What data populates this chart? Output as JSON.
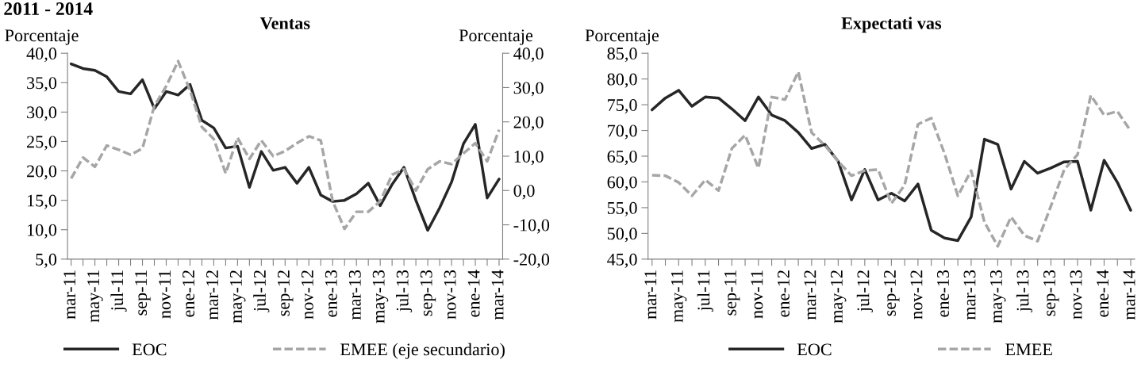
{
  "chart_data": [
    {
      "type": "line",
      "title": "Ventas",
      "ylabel": "Porcentaje",
      "y2label": "Porcentaje",
      "annotations": [
        "2011 - 2014"
      ],
      "categories": [
        "mar-11",
        null,
        "may-11",
        null,
        "jul-11",
        null,
        "sep-11",
        null,
        "nov-11",
        null,
        "ene-12",
        null,
        "mar-12",
        null,
        "may-12",
        null,
        "jul-12",
        null,
        "sep-12",
        null,
        "nov-12",
        null,
        "ene-13",
        null,
        "mar-13",
        null,
        "may-13",
        null,
        "jul-13",
        null,
        "sep-13",
        null,
        "nov-13",
        null,
        "ene-14",
        null,
        "mar-14"
      ],
      "series": [
        {
          "name": "EOC",
          "color": "#262626",
          "line_style": "solid",
          "values": [
            38.2,
            37.4,
            37.1,
            36.0,
            33.5,
            33.1,
            35.5,
            30.6,
            33.5,
            32.9,
            34.7,
            28.6,
            27.3,
            23.9,
            24.2,
            17.2,
            23.3,
            20.1,
            20.6,
            17.9,
            20.6,
            15.9,
            14.8,
            15.0,
            16.1,
            17.9,
            14.1,
            17.7,
            20.6,
            15.0,
            9.9,
            13.7,
            18.1,
            24.6,
            27.9,
            15.4,
            18.6
          ]
        },
        {
          "name": "EMEE (eje secundario)",
          "color": "#a6a6a6",
          "line_style": "dashed",
          "axis": "y2",
          "values": [
            3.5,
            9.6,
            6.9,
            13.1,
            11.9,
            10.4,
            12.3,
            24.6,
            30.4,
            37.7,
            29.2,
            18.5,
            15.0,
            5.0,
            15.4,
            9.2,
            14.6,
            10.0,
            11.5,
            13.8,
            15.8,
            14.6,
            -3.1,
            -11.2,
            -6.2,
            -6.2,
            -3.1,
            4.6,
            6.2,
            0.0,
            6.2,
            8.5,
            7.7,
            10.8,
            13.8,
            8.5,
            17.7
          ]
        }
      ],
      "ylim": [
        5,
        40
      ],
      "yticks": [
        {
          "value": 5,
          "label": "5,0"
        },
        {
          "value": 10,
          "label": "10,0"
        },
        {
          "value": 15,
          "label": "15,0"
        },
        {
          "value": 20,
          "label": "20,0"
        },
        {
          "value": 25,
          "label": "25,0"
        },
        {
          "value": 30,
          "label": "30,0"
        },
        {
          "value": 35,
          "label": "35,0"
        },
        {
          "value": 40,
          "label": "40,0"
        }
      ],
      "y2lim": [
        -20,
        40
      ],
      "y2ticks": [
        {
          "value": -20,
          "label": "-20,0"
        },
        {
          "value": -10,
          "label": "-10,0"
        },
        {
          "value": 0,
          "label": "0,0"
        },
        {
          "value": 10,
          "label": "10,0"
        },
        {
          "value": 20,
          "label": "20,0"
        },
        {
          "value": 30,
          "label": "30,0"
        },
        {
          "value": 40,
          "label": "40,0"
        }
      ],
      "grid": false,
      "legend": "bottom",
      "marker": "none"
    },
    {
      "type": "line",
      "title": "Expectati vas",
      "ylabel": "Porcentaje",
      "categories": [
        "mar-11",
        null,
        "may-11",
        null,
        "jul-11",
        null,
        "sep-11",
        null,
        "nov-11",
        null,
        "ene-12",
        null,
        "mar-12",
        null,
        "may-12",
        null,
        "jul-12",
        null,
        "sep-12",
        null,
        "nov-12",
        null,
        "ene-13",
        null,
        "mar-13",
        null,
        "may-13",
        null,
        "jul-13",
        null,
        "sep-13",
        null,
        "nov-13",
        null,
        "ene-14",
        null,
        "mar-14"
      ],
      "series": [
        {
          "name": "EOC",
          "color": "#262626",
          "line_style": "solid",
          "values": [
            74.0,
            76.3,
            77.8,
            74.7,
            76.5,
            76.3,
            74.2,
            71.9,
            76.5,
            73.0,
            71.9,
            69.6,
            66.5,
            67.3,
            64.0,
            56.5,
            62.4,
            56.5,
            57.8,
            56.3,
            59.6,
            50.6,
            49.1,
            48.6,
            53.2,
            68.3,
            67.3,
            58.6,
            64.0,
            61.7,
            62.7,
            63.9,
            64.0,
            54.5,
            64.2,
            59.9,
            54.5
          ]
        },
        {
          "name": "EMEE",
          "color": "#a6a6a6",
          "line_style": "dashed",
          "values": [
            61.3,
            61.2,
            59.9,
            57.3,
            60.4,
            58.3,
            66.5,
            69.1,
            62.7,
            76.5,
            76.0,
            81.4,
            69.6,
            67.1,
            64.0,
            61.2,
            62.2,
            62.4,
            55.8,
            59.4,
            71.2,
            72.4,
            65.5,
            57.3,
            62.2,
            52.2,
            47.5,
            53.2,
            49.6,
            48.5,
            55.3,
            62.4,
            65.3,
            76.8,
            73.0,
            73.7,
            69.9
          ]
        }
      ],
      "ylim": [
        45,
        85
      ],
      "yticks": [
        {
          "value": 45,
          "label": "45,0"
        },
        {
          "value": 50,
          "label": "50,0"
        },
        {
          "value": 55,
          "label": "55,0"
        },
        {
          "value": 60,
          "label": "60,0"
        },
        {
          "value": 65,
          "label": "65,0"
        },
        {
          "value": 70,
          "label": "70,0"
        },
        {
          "value": 75,
          "label": "75,0"
        },
        {
          "value": 80,
          "label": "80,0"
        },
        {
          "value": 85,
          "label": "85,0"
        }
      ],
      "grid": false,
      "legend": "bottom",
      "marker": "none"
    }
  ]
}
